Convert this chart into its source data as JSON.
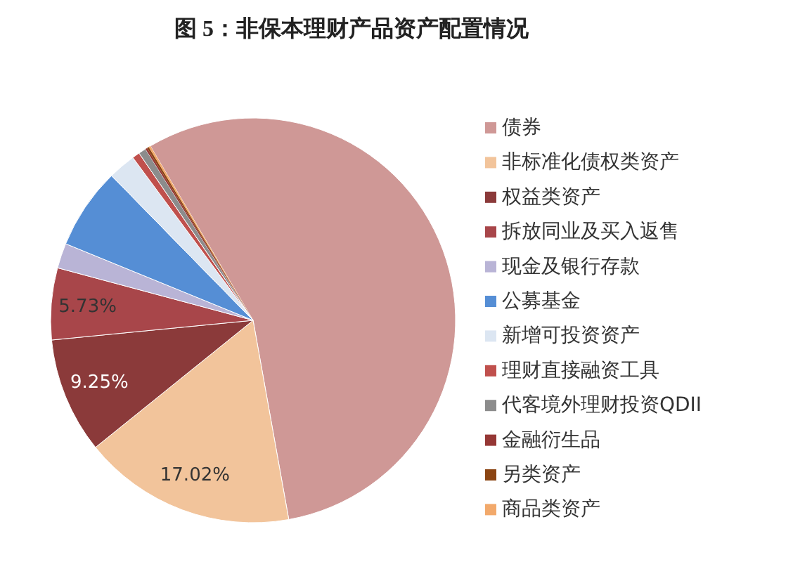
{
  "chart_data": {
    "type": "pie",
    "title": "图 5：非保本理财产品资产配置情况",
    "categories": [
      "债券",
      "非标准化债权类资产",
      "权益类资产",
      "拆放同业及买入返售",
      "现金及银行存款",
      "公募基金",
      "新增可投资资产",
      "理财直接融资工具",
      "代客境外理财投资QDII",
      "金融衍生品",
      "另类资产",
      "商品类资产"
    ],
    "values": [
      55.65,
      17.02,
      9.25,
      5.73,
      2.0,
      6.5,
      2.2,
      0.6,
      0.6,
      0.15,
      0.15,
      0.15
    ],
    "colors": [
      "#cf9896",
      "#f2c49b",
      "#8b3a3a",
      "#a8464a",
      "#b9b4d6",
      "#558ed5",
      "#dce6f2",
      "#c0504d",
      "#8c8c8c",
      "#953735",
      "#8b4513",
      "#f2a96b"
    ],
    "value_labels": [
      null,
      "17.02%",
      "9.25%",
      "5.73%",
      null,
      null,
      null,
      null,
      null,
      null,
      null,
      null
    ],
    "legend": "right"
  }
}
